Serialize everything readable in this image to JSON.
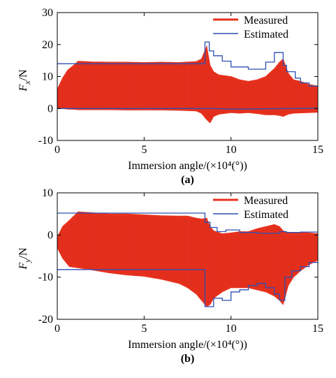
{
  "chart_data": [
    {
      "panel_label": "(a)",
      "type": "line",
      "ylabel_main": "F",
      "ylabel_sub": "x",
      "ylabel_unit": "/N",
      "xlabel": "Immersion angle/(×10⁴(°))",
      "xlim": [
        0,
        15
      ],
      "ylim": [
        -10,
        30
      ],
      "xticks": [
        0,
        5,
        10,
        15
      ],
      "yticks": [
        -10,
        0,
        10,
        20,
        30
      ],
      "legend": "top-right",
      "grid": false,
      "series": [
        {
          "name": "Measured",
          "color": "#e8321e",
          "kind": "envelope",
          "x": [
            0.0,
            0.3,
            0.6,
            1.0,
            1.2,
            2.0,
            3.0,
            4.0,
            5.0,
            6.0,
            7.0,
            8.0,
            8.3,
            8.6,
            8.8,
            9.0,
            9.3,
            10.0,
            10.5,
            11.0,
            11.5,
            12.0,
            12.5,
            12.8,
            13.0,
            13.3,
            13.6,
            14.0,
            14.5,
            15.0
          ],
          "upper": [
            6.0,
            9.5,
            12.0,
            13.8,
            14.8,
            14.6,
            14.5,
            14.5,
            14.4,
            14.5,
            14.4,
            14.7,
            15.5,
            19.5,
            13.5,
            11.5,
            10.5,
            10.0,
            9.0,
            8.5,
            9.0,
            10.0,
            12.5,
            14.5,
            15.5,
            11.0,
            9.0,
            8.5,
            7.5,
            7.0
          ],
          "lower": [
            0.2,
            0.0,
            -0.2,
            -0.3,
            -0.4,
            -0.4,
            -0.4,
            -0.5,
            -0.5,
            -0.5,
            -0.6,
            -0.8,
            -1.5,
            -3.5,
            -4.5,
            -2.5,
            -1.8,
            -1.3,
            -1.5,
            -1.3,
            -1.6,
            -2.0,
            -2.0,
            -2.2,
            -2.5,
            -1.8,
            -1.5,
            -1.4,
            -1.3,
            -1.2
          ]
        },
        {
          "name": "Estimated",
          "color": "#2f4fb4",
          "kind": "step-pair",
          "upper_x": [
            0.0,
            8.5,
            8.5,
            8.75,
            8.75,
            9.0,
            9.0,
            9.5,
            9.5,
            10.0,
            10.0,
            11.0,
            11.0,
            12.0,
            12.0,
            12.5,
            12.5,
            13.0,
            13.0,
            13.2,
            13.2,
            13.7,
            13.7,
            14.0,
            14.0,
            14.5,
            14.5,
            15.0
          ],
          "upper_y": [
            14.0,
            14.0,
            20.8,
            20.8,
            18.0,
            18.0,
            16.5,
            16.5,
            14.8,
            14.8,
            13.0,
            13.0,
            12.3,
            12.3,
            14.5,
            14.5,
            17.5,
            17.5,
            13.5,
            13.5,
            11.5,
            11.5,
            9.5,
            9.5,
            8.0,
            8.0,
            7.0,
            7.0
          ],
          "lower_x": [
            0.0,
            9.0,
            10.0,
            12.0,
            15.0
          ],
          "lower_y": [
            0.0,
            0.0,
            -0.2,
            -0.1,
            0.1
          ]
        }
      ]
    },
    {
      "panel_label": "(b)",
      "type": "line",
      "ylabel_main": "F",
      "ylabel_sub": "y",
      "ylabel_unit": "/N",
      "xlabel": "Immersion angle/(×10⁴(°))",
      "xlim": [
        0,
        15
      ],
      "ylim": [
        -20,
        10
      ],
      "xticks": [
        0,
        5,
        10,
        15
      ],
      "yticks": [
        -20,
        -10,
        0,
        10
      ],
      "legend": "top-right",
      "grid": false,
      "series": [
        {
          "name": "Measured",
          "color": "#e8321e",
          "kind": "envelope",
          "x": [
            0.0,
            0.3,
            0.7,
            1.2,
            2.0,
            3.0,
            4.0,
            5.0,
            6.0,
            7.0,
            7.5,
            8.0,
            8.3,
            8.6,
            8.8,
            9.0,
            9.5,
            10.0,
            10.5,
            11.0,
            11.5,
            12.0,
            12.5,
            12.8,
            13.0,
            13.3,
            13.6,
            14.0,
            14.5,
            15.0
          ],
          "upper": [
            -0.5,
            2.0,
            3.5,
            5.5,
            5.3,
            5.0,
            5.0,
            4.8,
            4.6,
            4.5,
            4.5,
            4.0,
            3.8,
            4.0,
            2.0,
            1.0,
            0.3,
            0.5,
            0.8,
            0.8,
            1.5,
            2.0,
            2.5,
            2.0,
            1.0,
            0.5,
            0.5,
            0.7,
            0.5,
            0.3
          ],
          "lower": [
            -3.0,
            -5.5,
            -7.5,
            -7.8,
            -8.3,
            -9.0,
            -9.5,
            -9.8,
            -10.5,
            -11.5,
            -12.5,
            -14.0,
            -15.5,
            -17.0,
            -16.5,
            -15.0,
            -13.5,
            -12.5,
            -12.5,
            -12.5,
            -13.0,
            -13.5,
            -14.5,
            -15.5,
            -16.5,
            -12.0,
            -10.0,
            -8.5,
            -7.0,
            -6.0
          ]
        },
        {
          "name": "Estimated",
          "color": "#2f4fb4",
          "kind": "step-pair",
          "upper_x": [
            0.0,
            8.5,
            8.5,
            8.8,
            8.8,
            9.2,
            9.2,
            9.7,
            9.7,
            10.5,
            10.5,
            11.5,
            11.5,
            12.8,
            12.8,
            13.2,
            13.2,
            14.0,
            14.0,
            15.0
          ],
          "upper_y": [
            5.2,
            5.2,
            3.0,
            3.0,
            1.8,
            1.8,
            0.8,
            0.8,
            1.2,
            1.2,
            0.6,
            0.6,
            0.4,
            0.4,
            0.8,
            0.8,
            0.6,
            0.6,
            0.7,
            0.7
          ],
          "lower_x": [
            0.0,
            8.5,
            8.5,
            9.0,
            9.0,
            9.5,
            9.5,
            10.0,
            10.0,
            10.5,
            10.5,
            11.0,
            11.0,
            11.5,
            11.5,
            12.0,
            12.0,
            12.5,
            12.5,
            12.8,
            12.8,
            13.1,
            13.1,
            13.5,
            13.5,
            14.0,
            14.0,
            14.5,
            14.5,
            15.0
          ],
          "lower_y": [
            -8.2,
            -8.2,
            -17.0,
            -17.0,
            -15.0,
            -15.0,
            -15.5,
            -15.5,
            -13.5,
            -13.5,
            -13.0,
            -13.0,
            -12.0,
            -12.0,
            -11.5,
            -11.5,
            -12.5,
            -12.5,
            -14.0,
            -14.0,
            -15.5,
            -15.5,
            -10.0,
            -10.0,
            -8.5,
            -8.5,
            -7.5,
            -7.5,
            -6.5,
            -6.5
          ]
        }
      ]
    }
  ]
}
